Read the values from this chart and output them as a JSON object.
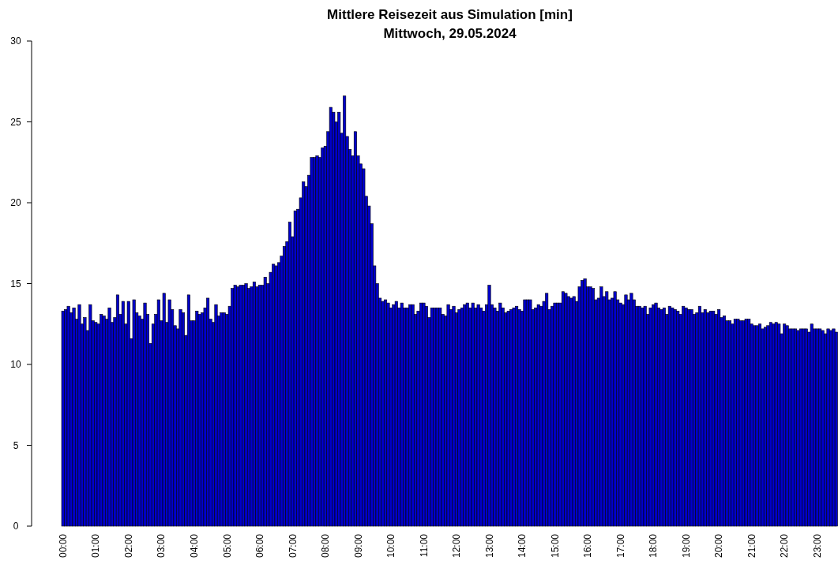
{
  "chart_data": {
    "type": "bar",
    "title": "Mittlere Reisezeit aus Simulation [min]",
    "subtitle": "Mittwoch, 29.05.2024",
    "categories": [
      "00:00",
      null,
      null,
      null,
      null,
      null,
      null,
      null,
      null,
      null,
      null,
      null,
      "01:00",
      null,
      null,
      null,
      null,
      null,
      null,
      null,
      null,
      null,
      null,
      null,
      "02:00",
      null,
      null,
      null,
      null,
      null,
      null,
      null,
      null,
      null,
      null,
      null,
      "03:00",
      null,
      null,
      null,
      null,
      null,
      null,
      null,
      null,
      null,
      null,
      null,
      "04:00",
      null,
      null,
      null,
      null,
      null,
      null,
      null,
      null,
      null,
      null,
      null,
      "05:00",
      null,
      null,
      null,
      null,
      null,
      null,
      null,
      null,
      null,
      null,
      null,
      "06:00",
      null,
      null,
      null,
      null,
      null,
      null,
      null,
      null,
      null,
      null,
      null,
      "07:00",
      null,
      null,
      null,
      null,
      null,
      null,
      null,
      null,
      null,
      null,
      null,
      "08:00",
      null,
      null,
      null,
      null,
      null,
      null,
      null,
      null,
      null,
      null,
      null,
      "09:00",
      null,
      null,
      null,
      null,
      null,
      null,
      null,
      null,
      null,
      null,
      null,
      "10:00",
      null,
      null,
      null,
      null,
      null,
      null,
      null,
      null,
      null,
      null,
      null,
      "11:00",
      null,
      null,
      null,
      null,
      null,
      null,
      null,
      null,
      null,
      null,
      null,
      "12:00",
      null,
      null,
      null,
      null,
      null,
      null,
      null,
      null,
      null,
      null,
      null,
      "13:00",
      null,
      null,
      null,
      null,
      null,
      null,
      null,
      null,
      null,
      null,
      null,
      "14:00",
      null,
      null,
      null,
      null,
      null,
      null,
      null,
      null,
      null,
      null,
      null,
      "15:00",
      null,
      null,
      null,
      null,
      null,
      null,
      null,
      null,
      null,
      null,
      null,
      "16:00",
      null,
      null,
      null,
      null,
      null,
      null,
      null,
      null,
      null,
      null,
      null,
      "17:00",
      null,
      null,
      null,
      null,
      null,
      null,
      null,
      null,
      null,
      null,
      null,
      "18:00",
      null,
      null,
      null,
      null,
      null,
      null,
      null,
      null,
      null,
      null,
      null,
      "19:00",
      null,
      null,
      null,
      null,
      null,
      null,
      null,
      null,
      null,
      null,
      null,
      "20:00",
      null,
      null,
      null,
      null,
      null,
      null,
      null,
      null,
      null,
      null,
      null,
      "21:00",
      null,
      null,
      null,
      null,
      null,
      null,
      null,
      null,
      null,
      null,
      null,
      "22:00",
      null,
      null,
      null,
      null,
      null,
      null,
      null,
      null,
      null,
      null,
      null,
      "23:00",
      null,
      null,
      null,
      null,
      null,
      null,
      null
    ],
    "values": [
      13.3,
      13.4,
      13.6,
      13.2,
      13.5,
      12.8,
      13.7,
      12.5,
      12.9,
      12.1,
      13.7,
      12.7,
      12.6,
      12.5,
      13.1,
      13.0,
      12.8,
      13.5,
      12.6,
      12.9,
      14.3,
      13.1,
      13.9,
      12.5,
      13.9,
      11.6,
      14.0,
      13.2,
      13.0,
      12.8,
      13.8,
      13.1,
      11.3,
      12.5,
      13.1,
      14.0,
      12.7,
      14.4,
      12.6,
      14.0,
      13.4,
      12.4,
      12.2,
      13.4,
      13.2,
      11.8,
      14.3,
      12.7,
      12.7,
      13.3,
      13.1,
      13.2,
      13.5,
      14.1,
      12.8,
      12.6,
      13.7,
      13.0,
      13.2,
      13.2,
      13.1,
      13.6,
      14.7,
      14.9,
      14.8,
      14.9,
      14.9,
      15.0,
      14.7,
      14.8,
      15.1,
      14.8,
      14.9,
      14.9,
      15.4,
      15.0,
      15.7,
      16.2,
      16.1,
      16.3,
      16.7,
      17.3,
      17.6,
      18.8,
      17.9,
      19.5,
      19.6,
      20.3,
      21.3,
      21.0,
      21.7,
      22.8,
      22.8,
      22.9,
      22.8,
      23.4,
      23.5,
      24.4,
      25.9,
      25.6,
      25.0,
      25.6,
      24.3,
      26.6,
      24.1,
      23.3,
      22.9,
      24.4,
      22.9,
      22.4,
      22.1,
      20.4,
      19.8,
      18.7,
      16.1,
      15.0,
      14.1,
      13.9,
      14.0,
      13.8,
      13.5,
      13.7,
      13.9,
      13.5,
      13.8,
      13.5,
      13.5,
      13.7,
      13.7,
      13.1,
      13.3,
      13.8,
      13.8,
      13.6,
      12.9,
      13.5,
      13.5,
      13.5,
      13.5,
      13.1,
      13.0,
      13.7,
      13.4,
      13.6,
      13.2,
      13.4,
      13.5,
      13.7,
      13.8,
      13.5,
      13.8,
      13.5,
      13.7,
      13.5,
      13.3,
      13.7,
      14.9,
      13.7,
      13.5,
      13.3,
      13.8,
      13.5,
      13.2,
      13.3,
      13.4,
      13.5,
      13.6,
      13.4,
      13.3,
      14.0,
      14.0,
      14.0,
      13.4,
      13.5,
      13.7,
      13.6,
      13.9,
      14.4,
      13.4,
      13.6,
      13.8,
      13.8,
      13.8,
      14.5,
      14.4,
      14.2,
      14.1,
      14.2,
      13.9,
      14.8,
      15.2,
      15.3,
      14.8,
      14.8,
      14.7,
      14.0,
      14.1,
      14.8,
      14.2,
      14.5,
      14.0,
      14.1,
      14.5,
      14.0,
      13.8,
      13.7,
      14.3,
      14.0,
      14.4,
      14.0,
      13.6,
      13.6,
      13.5,
      13.6,
      13.1,
      13.5,
      13.7,
      13.8,
      13.5,
      13.4,
      13.5,
      13.1,
      13.6,
      13.5,
      13.4,
      13.3,
      13.1,
      13.6,
      13.5,
      13.4,
      13.4,
      13.1,
      13.2,
      13.6,
      13.2,
      13.4,
      13.2,
      13.3,
      13.3,
      13.1,
      13.4,
      12.9,
      13.0,
      12.7,
      12.7,
      12.5,
      12.8,
      12.8,
      12.7,
      12.7,
      12.8,
      12.8,
      12.5,
      12.4,
      12.4,
      12.5,
      12.2,
      12.3,
      12.4,
      12.6,
      12.5,
      12.6,
      12.5,
      11.9,
      12.5,
      12.4,
      12.2,
      12.2,
      12.2,
      12.1,
      12.2,
      12.2,
      12.2,
      12.0,
      12.5,
      12.2,
      12.2,
      12.2,
      12.1,
      11.9,
      12.2,
      12.1,
      12.2,
      12.0
    ],
    "color": "#0000cc",
    "ylim": [
      0,
      30
    ],
    "yticks": [
      0,
      5,
      10,
      15,
      20,
      25,
      30
    ]
  }
}
